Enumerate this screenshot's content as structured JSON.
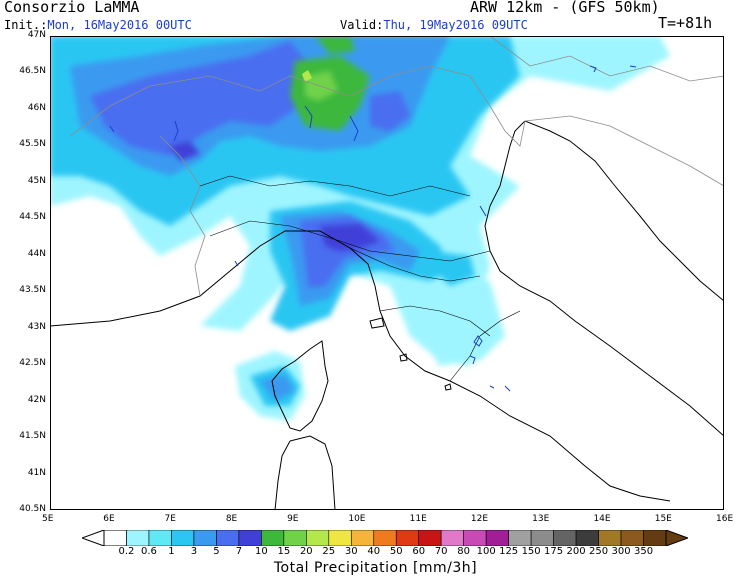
{
  "header": {
    "producer": "Consorzio LaMMA",
    "model": "ARW 12km - (GFS 50km)",
    "init_label": "Init.:",
    "init_value": "Mon, 16May2016 00UTC",
    "valid_label": "Valid:",
    "valid_value": "Thu, 19May2016 09UTC",
    "forecast_hour": "T=+81h"
  },
  "map": {
    "lat_ticks": [
      "47N",
      "46.5N",
      "46N",
      "45.5N",
      "45N",
      "44.5N",
      "44N",
      "43.5N",
      "43N",
      "42.5N",
      "42N",
      "41.5N",
      "41N",
      "40.5N"
    ],
    "lon_ticks": [
      "5E",
      "6E",
      "7E",
      "8E",
      "9E",
      "10E",
      "11E",
      "12E",
      "13E",
      "14E",
      "15E",
      "16E"
    ],
    "colors": {
      "sea": "#ffffff",
      "coast": "#000000",
      "borders": "#8c8c8c",
      "lakes": "#1a3fcc"
    }
  },
  "legend": {
    "title": "Total Precipitation [mm/3h]",
    "levels": [
      "0.2",
      "0.6",
      "1",
      "3",
      "5",
      "7",
      "10",
      "15",
      "20",
      "25",
      "30",
      "40",
      "50",
      "60",
      "70",
      "80",
      "100",
      "125",
      "150",
      "175",
      "200",
      "250",
      "300",
      "350"
    ],
    "colors": [
      "#9ff5ff",
      "#5ee9f5",
      "#2bc6f2",
      "#3a9af0",
      "#4a6ef0",
      "#4040d8",
      "#3db83d",
      "#6fd24a",
      "#b4e84a",
      "#f0e642",
      "#f5b43a",
      "#f07a1e",
      "#e03a14",
      "#c81414",
      "#e07ac8",
      "#c84ab4",
      "#a01e96",
      "#a0a0a0",
      "#8c8c8c",
      "#646464",
      "#3c3c3c",
      "#a07828",
      "#8c5a1e",
      "#643c14"
    ]
  }
}
